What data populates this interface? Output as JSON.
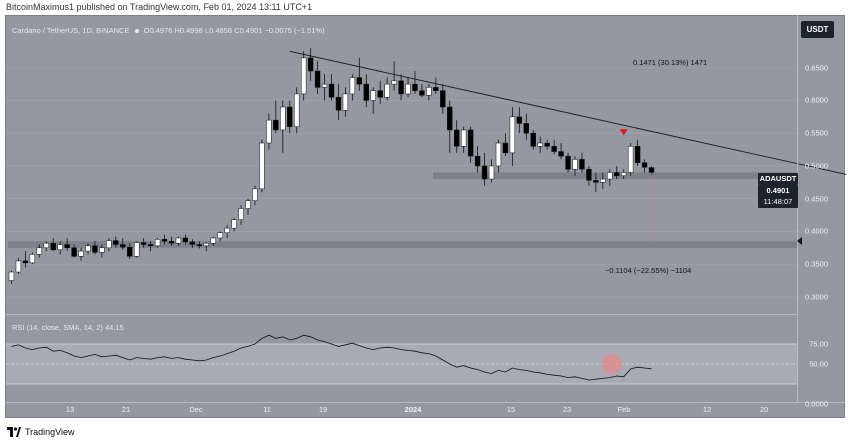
{
  "header": {
    "publisher_line": "BitcoinMaximus1 published on TradingView.com, Feb 01, 2024 13:11 UTC+1"
  },
  "legend": {
    "symbol_desc": "Cardano / TetherUS, 1D, BINANCE",
    "ohlc": "O0.4976 H0.4998 L0.4858 C0.4901 −0.0075 (−1.51%)"
  },
  "rsi_legend": "RSI (14, close, SMA, 14, 2)  44.15",
  "currency": "USDT",
  "price_axis": {
    "labels": [
      "0.6500",
      "0.6000",
      "0.5500",
      "0.5000",
      "0.4500",
      "0.4000",
      "0.3500",
      "0.3000"
    ],
    "rsi_labels": [
      "75.00",
      "50.00",
      "0.0000"
    ]
  },
  "time_axis": {
    "labels": [
      "13",
      "21",
      "Dec",
      "11",
      "19",
      "2024",
      "15",
      "23",
      "Feb",
      "12",
      "20"
    ]
  },
  "tags": {
    "symbol": "ADAUSDT",
    "last_price": "0.4901",
    "countdown": "11:48:07"
  },
  "annotations": {
    "top_measure": "0.1471 (30.13%) 1471",
    "bottom_measure": "−0.1104 (−22.55%) −1104"
  },
  "footer": {
    "brand": "TradingView"
  },
  "colors": {
    "background": "#9598a1",
    "up_candle": "#ffffff",
    "down_candle": "#000000",
    "signal_arrow": "#e5131b",
    "rsi_highlight": "#e58a8a"
  },
  "chart_data": {
    "type": "candlestick",
    "title": "Cardano / TetherUS, 1D, BINANCE",
    "y_range": [
      0.28,
      0.7
    ],
    "ohlc": [
      [
        0.325,
        0.34,
        0.32,
        0.338
      ],
      [
        0.338,
        0.36,
        0.335,
        0.355
      ],
      [
        0.355,
        0.37,
        0.345,
        0.352
      ],
      [
        0.352,
        0.368,
        0.35,
        0.365
      ],
      [
        0.365,
        0.38,
        0.36,
        0.375
      ],
      [
        0.375,
        0.385,
        0.37,
        0.382
      ],
      [
        0.382,
        0.39,
        0.37,
        0.372
      ],
      [
        0.372,
        0.385,
        0.365,
        0.38
      ],
      [
        0.38,
        0.39,
        0.37,
        0.375
      ],
      [
        0.375,
        0.38,
        0.36,
        0.362
      ],
      [
        0.362,
        0.375,
        0.355,
        0.37
      ],
      [
        0.37,
        0.382,
        0.365,
        0.378
      ],
      [
        0.378,
        0.385,
        0.365,
        0.368
      ],
      [
        0.368,
        0.38,
        0.36,
        0.375
      ],
      [
        0.375,
        0.39,
        0.37,
        0.386
      ],
      [
        0.386,
        0.392,
        0.375,
        0.38
      ],
      [
        0.38,
        0.39,
        0.372,
        0.376
      ],
      [
        0.376,
        0.382,
        0.358,
        0.362
      ],
      [
        0.362,
        0.385,
        0.36,
        0.383
      ],
      [
        0.383,
        0.39,
        0.375,
        0.38
      ],
      [
        0.38,
        0.385,
        0.37,
        0.378
      ],
      [
        0.378,
        0.39,
        0.375,
        0.388
      ],
      [
        0.388,
        0.395,
        0.38,
        0.385
      ],
      [
        0.385,
        0.392,
        0.378,
        0.382
      ],
      [
        0.382,
        0.392,
        0.378,
        0.39
      ],
      [
        0.39,
        0.395,
        0.38,
        0.384
      ],
      [
        0.384,
        0.388,
        0.375,
        0.38
      ],
      [
        0.38,
        0.385,
        0.374,
        0.378
      ],
      [
        0.378,
        0.384,
        0.37,
        0.382
      ],
      [
        0.382,
        0.392,
        0.378,
        0.39
      ],
      [
        0.39,
        0.4,
        0.385,
        0.398
      ],
      [
        0.398,
        0.41,
        0.39,
        0.405
      ],
      [
        0.405,
        0.42,
        0.4,
        0.418
      ],
      [
        0.418,
        0.44,
        0.41,
        0.435
      ],
      [
        0.435,
        0.45,
        0.425,
        0.447
      ],
      [
        0.447,
        0.47,
        0.44,
        0.465
      ],
      [
        0.465,
        0.54,
        0.46,
        0.535
      ],
      [
        0.535,
        0.58,
        0.525,
        0.57
      ],
      [
        0.57,
        0.6,
        0.55,
        0.555
      ],
      [
        0.555,
        0.6,
        0.52,
        0.59
      ],
      [
        0.59,
        0.6,
        0.55,
        0.56
      ],
      [
        0.56,
        0.62,
        0.55,
        0.61
      ],
      [
        0.61,
        0.675,
        0.6,
        0.665
      ],
      [
        0.665,
        0.68,
        0.63,
        0.645
      ],
      [
        0.645,
        0.66,
        0.61,
        0.62
      ],
      [
        0.62,
        0.64,
        0.6,
        0.625
      ],
      [
        0.625,
        0.64,
        0.6,
        0.605
      ],
      [
        0.605,
        0.625,
        0.57,
        0.585
      ],
      [
        0.585,
        0.62,
        0.575,
        0.61
      ],
      [
        0.61,
        0.64,
        0.6,
        0.635
      ],
      [
        0.635,
        0.665,
        0.615,
        0.625
      ],
      [
        0.625,
        0.64,
        0.59,
        0.6
      ],
      [
        0.6,
        0.62,
        0.58,
        0.615
      ],
      [
        0.615,
        0.63,
        0.595,
        0.605
      ],
      [
        0.605,
        0.635,
        0.6,
        0.625
      ],
      [
        0.625,
        0.66,
        0.615,
        0.63
      ],
      [
        0.63,
        0.64,
        0.6,
        0.61
      ],
      [
        0.61,
        0.635,
        0.605,
        0.625
      ],
      [
        0.625,
        0.645,
        0.61,
        0.615
      ],
      [
        0.615,
        0.625,
        0.605,
        0.608
      ],
      [
        0.608,
        0.625,
        0.6,
        0.62
      ],
      [
        0.62,
        0.635,
        0.61,
        0.615
      ],
      [
        0.615,
        0.625,
        0.58,
        0.59
      ],
      [
        0.59,
        0.6,
        0.52,
        0.555
      ],
      [
        0.555,
        0.57,
        0.52,
        0.53
      ],
      [
        0.53,
        0.56,
        0.52,
        0.555
      ],
      [
        0.555,
        0.56,
        0.505,
        0.515
      ],
      [
        0.515,
        0.53,
        0.49,
        0.5
      ],
      [
        0.5,
        0.52,
        0.47,
        0.48
      ],
      [
        0.48,
        0.51,
        0.475,
        0.5
      ],
      [
        0.5,
        0.54,
        0.49,
        0.535
      ],
      [
        0.535,
        0.55,
        0.515,
        0.52
      ],
      [
        0.52,
        0.59,
        0.5,
        0.575
      ],
      [
        0.575,
        0.59,
        0.55,
        0.565
      ],
      [
        0.565,
        0.58,
        0.54,
        0.55
      ],
      [
        0.55,
        0.555,
        0.525,
        0.53
      ],
      [
        0.53,
        0.545,
        0.52,
        0.535
      ],
      [
        0.535,
        0.54,
        0.525,
        0.53
      ],
      [
        0.53,
        0.54,
        0.518,
        0.522
      ],
      [
        0.522,
        0.535,
        0.51,
        0.515
      ],
      [
        0.515,
        0.52,
        0.49,
        0.495
      ],
      [
        0.495,
        0.515,
        0.485,
        0.51
      ],
      [
        0.51,
        0.52,
        0.49,
        0.495
      ],
      [
        0.495,
        0.5,
        0.47,
        0.478
      ],
      [
        0.478,
        0.49,
        0.46,
        0.475
      ],
      [
        0.475,
        0.49,
        0.465,
        0.48
      ],
      [
        0.48,
        0.495,
        0.47,
        0.49
      ],
      [
        0.49,
        0.5,
        0.48,
        0.485
      ],
      [
        0.485,
        0.495,
        0.48,
        0.49
      ],
      [
        0.49,
        0.535,
        0.485,
        0.53
      ],
      [
        0.53,
        0.54,
        0.5,
        0.505
      ],
      [
        0.505,
        0.51,
        0.49,
        0.498
      ],
      [
        0.4976,
        0.4998,
        0.4858,
        0.4901
      ]
    ],
    "resistance_line": {
      "from_index": 40,
      "from_price": 0.675,
      "to_index": 120,
      "to_price": 0.487
    },
    "support_zones": [
      [
        0.48,
        0.49
      ],
      [
        0.375,
        0.385
      ]
    ],
    "rsi": {
      "levels": [
        75,
        50,
        25
      ],
      "values": [
        72,
        74,
        70,
        68,
        70,
        71,
        66,
        67,
        64,
        60,
        58,
        60,
        62,
        59,
        60,
        61,
        58,
        55,
        58,
        57,
        56,
        58,
        59,
        57,
        58,
        56,
        55,
        54,
        55,
        58,
        60,
        63,
        66,
        70,
        72,
        75,
        82,
        86,
        82,
        84,
        80,
        82,
        86,
        84,
        80,
        78,
        75,
        72,
        74,
        76,
        73,
        70,
        68,
        70,
        71,
        70,
        68,
        67,
        66,
        64,
        63,
        60,
        55,
        50,
        46,
        48,
        45,
        43,
        40,
        38,
        42,
        40,
        45,
        43,
        42,
        40,
        39,
        37,
        36,
        35,
        33,
        34,
        32,
        30,
        31,
        32,
        33,
        35,
        34,
        44,
        46,
        45,
        44
      ]
    },
    "measures": [
      {
        "label": "0.1471 (30.13%) 1471"
      },
      {
        "label": "−0.1104 (−22.55%) −1104"
      }
    ]
  }
}
